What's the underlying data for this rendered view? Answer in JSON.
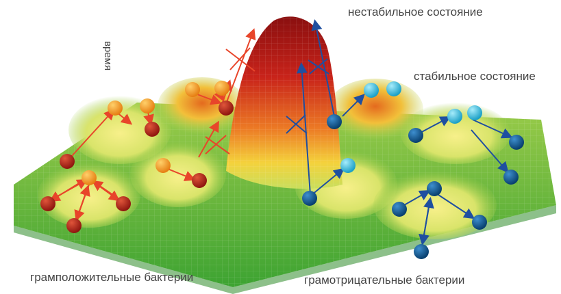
{
  "labels": {
    "unstable_state": "нестабильное состояние",
    "stable_state": "стабильное состояние",
    "time_axis": "время",
    "gram_positive": "грамположительные бактерии",
    "gram_negative": "грамотрицательные бактерии"
  },
  "colors": {
    "surface_low": "#4cae2f",
    "surface_mid": "#e9e86a",
    "surface_high": "#c01b14",
    "gram_positive_initial": "#f59a1a",
    "gram_positive_adapted": "#b3201a",
    "gram_negative_initial": "#2ab7d8",
    "gram_negative_adapted": "#0c5a92",
    "gram_positive_arrow": "#e8452a",
    "gram_negative_arrow": "#1f4fa0"
  },
  "legend_icons": [
    "gram-positive-bacterium-icon",
    "gram-negative-bacterium-icon",
    "blocked-transition-icon"
  ]
}
